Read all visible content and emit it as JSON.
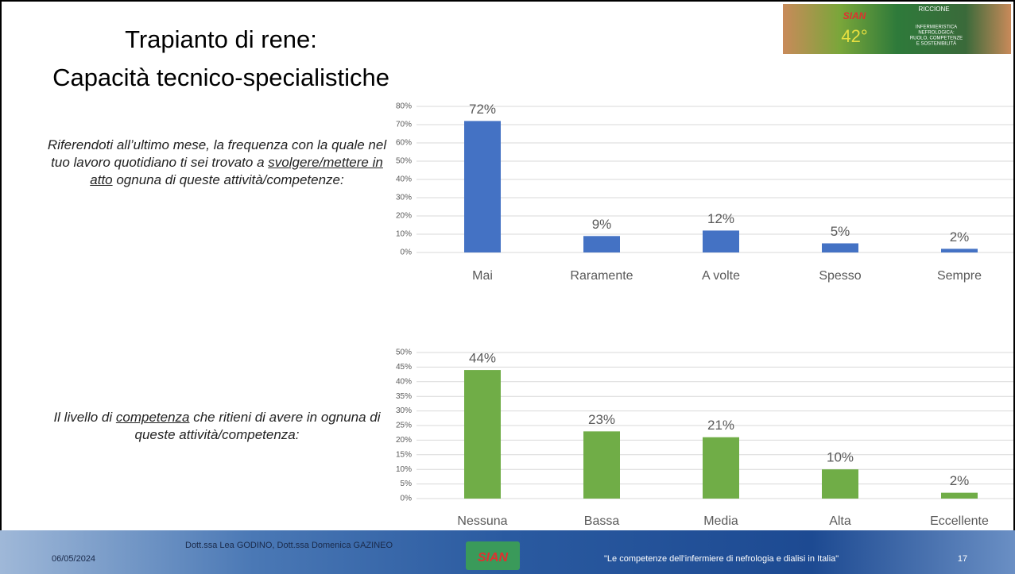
{
  "title_lines": [
    "Trapianto di rene:",
    "Capacità tecnico-specialistiche"
  ],
  "question_1": {
    "before": "Riferendoti all’ultimo mese, la frequenza con la quale nel tuo lavoro quotidiano ti sei trovato a ",
    "underlined": "svolgere/mettere in atto",
    "after": " ognuna di queste attività/competenze:"
  },
  "question_2": {
    "before": "Il livello di ",
    "underlined": "competenza",
    "after": " che ritieni di avere in ognuna di queste attività/competenza:"
  },
  "banner": {
    "logo": "SIAN",
    "edition": "42°",
    "place": "RICCIONE",
    "theme_lines": [
      "INFERMIERISTICA",
      "NEFROLOGICA:",
      "RUOLO, COMPETENZE",
      "E SOSTENIBILITÀ"
    ]
  },
  "footer": {
    "date": "06/05/2024",
    "authors": "Dott.ssa Lea GODINO, Dott.ssa Domenica GAZINEO",
    "logo": "SIAN",
    "tagline": "\"Le competenze dell’infermiere di nefrologia e dialisi in Italia\"",
    "page": "17"
  },
  "chart_data": [
    {
      "type": "bar",
      "color": "#4472c4",
      "grid": true,
      "categories": [
        "Mai",
        "Raramente",
        "A volte",
        "Spesso",
        "Sempre"
      ],
      "values": [
        72,
        9,
        12,
        5,
        2
      ],
      "value_labels": [
        "72%",
        "9%",
        "12%",
        "5%",
        "2%"
      ],
      "ylim": [
        0,
        80
      ],
      "yticks": [
        {
          "value": 0,
          "label": "0%"
        },
        {
          "value": 10,
          "label": "10%"
        },
        {
          "value": 20,
          "label": "20%"
        },
        {
          "value": 30,
          "label": "30%"
        },
        {
          "value": 40,
          "label": "40%"
        },
        {
          "value": 50,
          "label": "50%"
        },
        {
          "value": 60,
          "label": "60%"
        },
        {
          "value": 70,
          "label": "70%"
        },
        {
          "value": 80,
          "label": "80%"
        }
      ]
    },
    {
      "type": "bar",
      "color": "#70ad47",
      "grid": true,
      "categories": [
        "Nessuna",
        "Bassa",
        "Media",
        "Alta",
        "Eccellente"
      ],
      "values": [
        44,
        23,
        21,
        10,
        2
      ],
      "value_labels": [
        "44%",
        "23%",
        "21%",
        "10%",
        "2%"
      ],
      "ylim": [
        0,
        50
      ],
      "yticks": [
        {
          "value": 0,
          "label": "0%"
        },
        {
          "value": 5,
          "label": "5%"
        },
        {
          "value": 10,
          "label": "10%"
        },
        {
          "value": 15,
          "label": "15%"
        },
        {
          "value": 20,
          "label": "20%"
        },
        {
          "value": 25,
          "label": "25%"
        },
        {
          "value": 30,
          "label": "30%"
        },
        {
          "value": 35,
          "label": "35%"
        },
        {
          "value": 40,
          "label": "40%"
        },
        {
          "value": 45,
          "label": "45%"
        },
        {
          "value": 50,
          "label": "50%"
        }
      ]
    }
  ]
}
